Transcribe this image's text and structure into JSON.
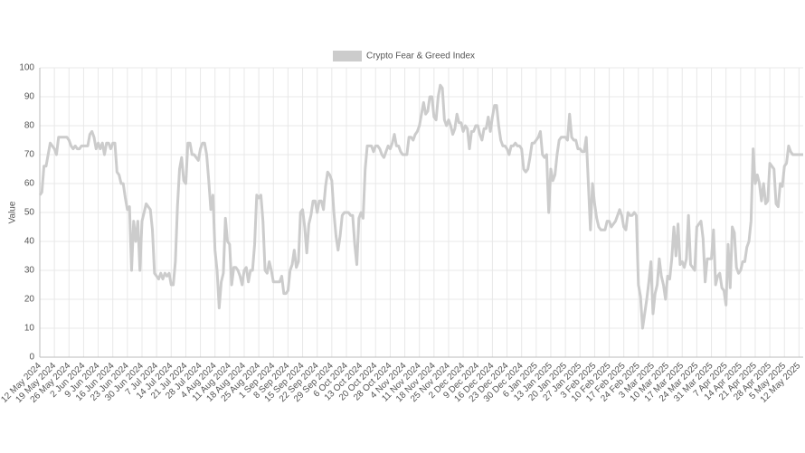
{
  "chart_data": {
    "type": "line",
    "ylabel": "Value",
    "categories": [
      "12 May 2024",
      null,
      null,
      null,
      null,
      null,
      null,
      "19 May 2024",
      null,
      null,
      null,
      null,
      null,
      null,
      "26 May 2024",
      null,
      null,
      null,
      null,
      null,
      null,
      "2 Jun 2024",
      null,
      null,
      null,
      null,
      null,
      null,
      "9 Jun 2024",
      null,
      null,
      null,
      null,
      null,
      null,
      "16 Jun 2024",
      null,
      null,
      null,
      null,
      null,
      null,
      "23 Jun 2024",
      null,
      null,
      null,
      null,
      null,
      null,
      "30 Jun 2024",
      null,
      null,
      null,
      null,
      null,
      null,
      "7 Jul 2024",
      null,
      null,
      null,
      null,
      null,
      null,
      "14 Jul 2024",
      null,
      null,
      null,
      null,
      null,
      null,
      "21 Jul 2024",
      null,
      null,
      null,
      null,
      null,
      null,
      "28 Jul 2024",
      null,
      null,
      null,
      null,
      null,
      null,
      "4 Aug 2024",
      null,
      null,
      null,
      null,
      null,
      null,
      "11 Aug 2024",
      null,
      null,
      null,
      null,
      null,
      null,
      "18 Aug 2024",
      null,
      null,
      null,
      null,
      null,
      null,
      "25 Aug 2024",
      null,
      null,
      null,
      null,
      null,
      null,
      "1 Sep 2024",
      null,
      null,
      null,
      null,
      null,
      null,
      "8 Sep 2024",
      null,
      null,
      null,
      null,
      null,
      null,
      "15 Sep 2024",
      null,
      null,
      null,
      null,
      null,
      null,
      "22 Sep 2024",
      null,
      null,
      null,
      null,
      null,
      null,
      "29 Sep 2024",
      null,
      null,
      null,
      null,
      null,
      null,
      "6 Oct 2024",
      null,
      null,
      null,
      null,
      null,
      null,
      "13 Oct 2024",
      null,
      null,
      null,
      null,
      null,
      null,
      "20 Oct 2024",
      null,
      null,
      null,
      null,
      null,
      null,
      "28 Oct 2024",
      null,
      null,
      null,
      null,
      null,
      null,
      "4 Nov 2024",
      null,
      null,
      null,
      null,
      null,
      null,
      "11 Nov 2024",
      null,
      null,
      null,
      null,
      null,
      null,
      "18 Nov 2024",
      null,
      null,
      null,
      null,
      null,
      null,
      "25 Nov 2024",
      null,
      null,
      null,
      null,
      null,
      null,
      "2 Dec 2024",
      null,
      null,
      null,
      null,
      null,
      null,
      "9 Dec 2024",
      null,
      null,
      null,
      null,
      null,
      null,
      "16 Dec 2024",
      null,
      null,
      null,
      null,
      null,
      null,
      "23 Dec 2024",
      null,
      null,
      null,
      null,
      null,
      null,
      "30 Dec 2024",
      null,
      null,
      null,
      null,
      null,
      null,
      "6 Jan 2025",
      null,
      null,
      null,
      null,
      null,
      null,
      "13 Jan 2025",
      null,
      null,
      null,
      null,
      null,
      null,
      "20 Jan 2025",
      null,
      null,
      null,
      null,
      null,
      null,
      "27 Jan 2025",
      null,
      null,
      null,
      null,
      null,
      null,
      "3 Feb 2025",
      null,
      null,
      null,
      null,
      null,
      null,
      "10 Feb 2025",
      null,
      null,
      null,
      null,
      null,
      null,
      "17 Feb 2025",
      null,
      null,
      null,
      null,
      null,
      null,
      "24 Feb 2025",
      null,
      null,
      null,
      null,
      null,
      null,
      "3 Mar 2025",
      null,
      null,
      null,
      null,
      null,
      null,
      "10 Mar 2025",
      null,
      null,
      null,
      null,
      null,
      null,
      "17 Mar 2025",
      null,
      null,
      null,
      null,
      null,
      null,
      "24 Mar 2025",
      null,
      null,
      null,
      null,
      null,
      null,
      "31 Mar 2025",
      null,
      null,
      null,
      null,
      null,
      null,
      "7 Apr 2025",
      null,
      null,
      null,
      null,
      null,
      null,
      "14 Apr 2025",
      null,
      null,
      null,
      null,
      null,
      null,
      "21 Apr 2025",
      null,
      null,
      null,
      null,
      null,
      null,
      "28 Apr 2025",
      null,
      null,
      null,
      null,
      null,
      null,
      "5 May 2025",
      null,
      null,
      null,
      null,
      null,
      null,
      "12 May 2025",
      null,
      null
    ],
    "series": [
      {
        "name": "Crypto Fear & Greed Index",
        "color": "#cccccc",
        "values": [
          56,
          57,
          66,
          66,
          70,
          74,
          73,
          72,
          70,
          76,
          76,
          76,
          76,
          76,
          75,
          73,
          72,
          73,
          72,
          72,
          73,
          73,
          73,
          73,
          77,
          78,
          76,
          72,
          74,
          72,
          74,
          70,
          74,
          74,
          72,
          74,
          74,
          64,
          63,
          60,
          60,
          55,
          51,
          52,
          30,
          47,
          40,
          47,
          30,
          47,
          50,
          53,
          52,
          51,
          44,
          29,
          28,
          27,
          29,
          27,
          29,
          28,
          29,
          25,
          25,
          33,
          52,
          65,
          69,
          61,
          60,
          74,
          74,
          70,
          70,
          69,
          68,
          72,
          74,
          74,
          70,
          61,
          51,
          56,
          37,
          30,
          17,
          26,
          29,
          48,
          40,
          39,
          25,
          31,
          31,
          30,
          28,
          25,
          30,
          31,
          26,
          30,
          30,
          39,
          56,
          55,
          56,
          47,
          30,
          29,
          33,
          30,
          26,
          26,
          26,
          26,
          28,
          22,
          22,
          23,
          30,
          32,
          37,
          31,
          33,
          50,
          51,
          45,
          36,
          46,
          49,
          54,
          54,
          50,
          54,
          54,
          51,
          59,
          64,
          63,
          61,
          50,
          42,
          37,
          42,
          49,
          50,
          50,
          50,
          49,
          49,
          39,
          32,
          48,
          50,
          48,
          65,
          73,
          73,
          73,
          71,
          73,
          73,
          72,
          70,
          69,
          71,
          73,
          72,
          74,
          77,
          73,
          73,
          71,
          70,
          70,
          70,
          76,
          76,
          75,
          77,
          78,
          80,
          84,
          88,
          84,
          85,
          90,
          90,
          83,
          82,
          90,
          94,
          93,
          82,
          80,
          82,
          80,
          77,
          79,
          84,
          81,
          81,
          78,
          80,
          79,
          72,
          78,
          78,
          80,
          80,
          77,
          75,
          79,
          79,
          83,
          78,
          83,
          87,
          87,
          80,
          75,
          73,
          73,
          72,
          70,
          73,
          73,
          74,
          73,
          73,
          72,
          65,
          64,
          65,
          69,
          74,
          74,
          75,
          76,
          78,
          70,
          69,
          70,
          50,
          65,
          61,
          63,
          70,
          75,
          76,
          76,
          76,
          75,
          84,
          76,
          75,
          75,
          72,
          72,
          71,
          71,
          76,
          60,
          44,
          60,
          53,
          48,
          45,
          44,
          44,
          44,
          47,
          47,
          45,
          46,
          47,
          49,
          51,
          49,
          45,
          44,
          50,
          49,
          49,
          50,
          49,
          25,
          21,
          10,
          15,
          20,
          26,
          33,
          15,
          22,
          25,
          34,
          28,
          25,
          20,
          28,
          27,
          34,
          45,
          35,
          46,
          32,
          33,
          31,
          34,
          49,
          32,
          31,
          30,
          45,
          46,
          47,
          41,
          26,
          34,
          34,
          34,
          44,
          25,
          28,
          29,
          24,
          23,
          18,
          39,
          24,
          45,
          43,
          31,
          29,
          30,
          33,
          33,
          38,
          40,
          47,
          72,
          60,
          63,
          60,
          54,
          60,
          53,
          54,
          67,
          66,
          65,
          53,
          52,
          60,
          59,
          66,
          67,
          73,
          71,
          70,
          70,
          70,
          70,
          70,
          70
        ]
      }
    ],
    "ylim": [
      0,
      100
    ],
    "yticks": [
      0,
      10,
      20,
      30,
      40,
      50,
      60,
      70,
      80,
      90,
      100
    ],
    "grid": true,
    "legend": "top"
  }
}
